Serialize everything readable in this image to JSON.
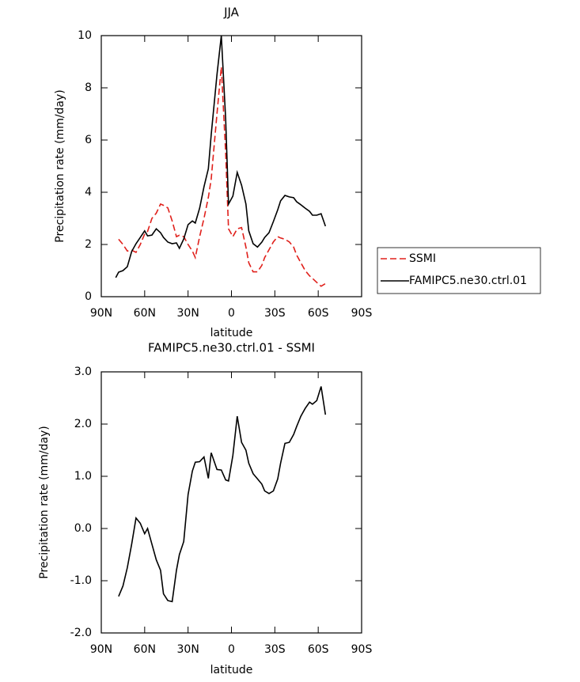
{
  "chart_data": [
    {
      "type": "line",
      "title": "JJA",
      "xlabel": "latitude",
      "ylabel": "Precipitation rate (mm/day)",
      "xlim": [
        90,
        -90
      ],
      "xticks": [
        {
          "value": 90,
          "label": "90N"
        },
        {
          "value": 60,
          "label": "60N"
        },
        {
          "value": 30,
          "label": "30N"
        },
        0,
        {
          "value": -30,
          "label": "30S"
        },
        {
          "value": -60,
          "label": "60S"
        },
        {
          "value": -90,
          "label": "90S"
        }
      ],
      "ylim": [
        0,
        10
      ],
      "yticks": [
        0,
        2,
        4,
        6,
        8,
        10
      ],
      "legend": "right",
      "x": [
        80,
        78,
        75,
        72,
        69,
        66,
        63,
        60,
        58,
        55,
        52,
        49,
        47,
        44,
        41,
        38,
        36,
        33,
        30,
        27,
        25,
        22,
        19,
        16,
        14,
        10,
        7,
        4,
        2,
        -1,
        -4,
        -7,
        -10,
        -12,
        -15,
        -18,
        -21,
        -23,
        -26,
        -29,
        -32,
        -34,
        -37,
        -40,
        -43,
        -45,
        -48,
        -51,
        -54,
        -56,
        -59,
        -62,
        -65
      ],
      "series": [
        {
          "name": "SSMI",
          "color": "#e0201b",
          "linestyle": "dashed",
          "values": [
            null,
            2.2,
            2.0,
            1.75,
            1.78,
            1.7,
            2.0,
            2.4,
            2.5,
            3.0,
            3.2,
            3.55,
            3.5,
            3.4,
            2.9,
            2.3,
            2.35,
            2.3,
            2.0,
            1.75,
            1.5,
            2.3,
            3.0,
            3.8,
            4.5,
            7.0,
            8.8,
            5.5,
            2.6,
            2.3,
            2.6,
            2.65,
            1.9,
            1.3,
            0.95,
            0.95,
            1.2,
            1.5,
            1.8,
            2.1,
            2.3,
            2.25,
            2.2,
            2.1,
            1.9,
            1.6,
            1.3,
            1.0,
            0.8,
            0.7,
            0.55,
            0.4,
            0.5
          ]
        },
        {
          "name": "FAMIPC5.ne30.ctrl.01",
          "color": "#000000",
          "linestyle": "solid",
          "values": [
            0.73,
            0.94,
            1.0,
            1.15,
            1.73,
            2.03,
            2.27,
            2.52,
            2.33,
            2.36,
            2.6,
            2.45,
            2.27,
            2.09,
            2.03,
            2.06,
            1.85,
            2.21,
            2.76,
            2.9,
            2.82,
            3.39,
            4.21,
            4.9,
            6.2,
            8.5,
            10.0,
            6.8,
            3.55,
            3.85,
            4.76,
            4.27,
            3.55,
            2.52,
            2.03,
            1.9,
            2.09,
            2.27,
            2.45,
            2.88,
            3.33,
            3.67,
            3.88,
            3.82,
            3.79,
            3.64,
            3.52,
            3.39,
            3.27,
            3.12,
            3.12,
            3.18,
            2.7
          ]
        }
      ]
    },
    {
      "type": "line",
      "title": "FAMIPC5.ne30.ctrl.01 - SSMI",
      "xlabel": "latitude",
      "ylabel": "Precipitation rate (mm/day)",
      "xlim": [
        90,
        -90
      ],
      "xticks": [
        {
          "value": 90,
          "label": "90N"
        },
        {
          "value": 60,
          "label": "60N"
        },
        {
          "value": 30,
          "label": "30N"
        },
        0,
        {
          "value": -30,
          "label": "30S"
        },
        {
          "value": -60,
          "label": "60S"
        },
        {
          "value": -90,
          "label": "90S"
        }
      ],
      "ylim": [
        -2,
        3
      ],
      "yticks": [
        {
          "value": -2,
          "label": "-2.0"
        },
        {
          "value": -1,
          "label": "-1.0"
        },
        {
          "value": 0,
          "label": "0.0"
        },
        {
          "value": 1,
          "label": "1.0"
        },
        {
          "value": 2,
          "label": "2.0"
        },
        {
          "value": 3,
          "label": "3.0"
        }
      ],
      "x": [
        80,
        78,
        75,
        72,
        69,
        66,
        63,
        60,
        58,
        55,
        52,
        49,
        47,
        44,
        41,
        38,
        36,
        33,
        30,
        27,
        25,
        22,
        19,
        16,
        14,
        10,
        7,
        4,
        2,
        -1,
        -4,
        -7,
        -10,
        -12,
        -15,
        -18,
        -21,
        -23,
        -26,
        -29,
        -32,
        -34,
        -37,
        -40,
        -43,
        -45,
        -48,
        -51,
        -54,
        -56,
        -59,
        -62,
        -65
      ],
      "series": [
        {
          "color": "#000000",
          "linestyle": "solid",
          "values": [
            null,
            -1.3,
            -1.1,
            -0.75,
            -0.3,
            0.2,
            0.1,
            -0.1,
            0.0,
            -0.3,
            -0.6,
            -0.8,
            -1.25,
            -1.38,
            -1.4,
            -0.8,
            -0.5,
            -0.25,
            0.65,
            1.1,
            1.27,
            1.28,
            1.37,
            0.96,
            1.45,
            1.13,
            1.12,
            0.93,
            0.91,
            1.4,
            2.15,
            1.65,
            1.5,
            1.25,
            1.05,
            0.95,
            0.85,
            0.72,
            0.67,
            0.72,
            0.95,
            1.25,
            1.63,
            1.65,
            1.8,
            1.95,
            2.15,
            2.3,
            2.42,
            2.38,
            2.45,
            2.72,
            2.18
          ]
        }
      ]
    }
  ]
}
